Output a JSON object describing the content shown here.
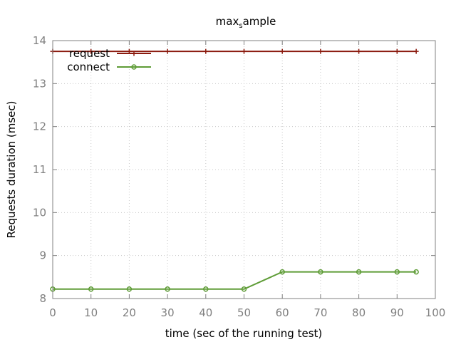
{
  "chart_data": {
    "type": "line",
    "title": "max",
    "title_subscript": "s",
    "title_suffix": "ample",
    "xlabel": "time (sec of the running test)",
    "ylabel": "Requests duration (msec)",
    "xlim": [
      0,
      100
    ],
    "ylim": [
      8,
      14
    ],
    "xticks": [
      0,
      10,
      20,
      30,
      40,
      50,
      60,
      70,
      80,
      90,
      100
    ],
    "yticks": [
      8,
      9,
      10,
      11,
      12,
      13,
      14
    ],
    "grid": true,
    "legend_position": "top-left",
    "series": [
      {
        "name": "request",
        "color": "#8b1a0e",
        "marker": "plus",
        "x": [
          0,
          10,
          20,
          30,
          40,
          50,
          60,
          70,
          80,
          90,
          95
        ],
        "y": [
          13.75,
          13.75,
          13.75,
          13.75,
          13.75,
          13.75,
          13.75,
          13.75,
          13.75,
          13.75,
          13.75
        ]
      },
      {
        "name": "connect",
        "color": "#5e9c36",
        "marker": "circle",
        "x": [
          0,
          10,
          20,
          30,
          40,
          50,
          60,
          70,
          80,
          90,
          95
        ],
        "y": [
          8.22,
          8.22,
          8.22,
          8.22,
          8.22,
          8.22,
          8.62,
          8.62,
          8.62,
          8.62,
          8.62
        ]
      }
    ]
  }
}
